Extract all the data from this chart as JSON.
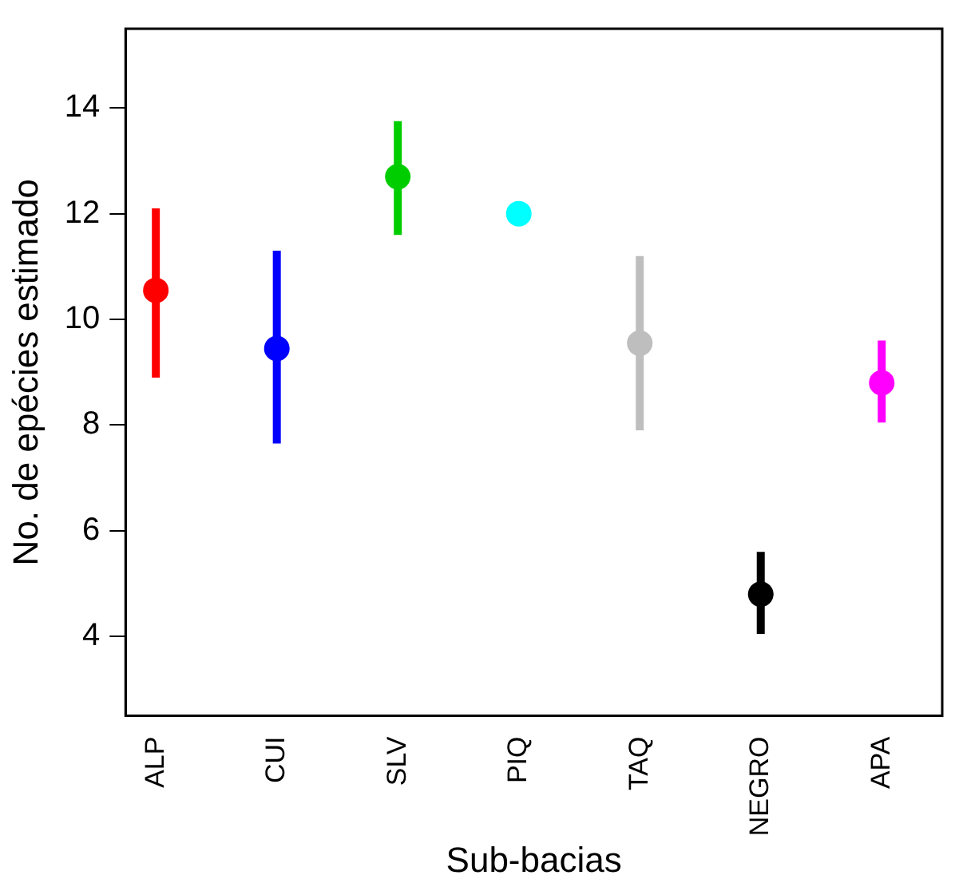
{
  "chart_data": {
    "type": "scatter",
    "xlabel": "Sub-bacias",
    "ylabel": "No. de epécies estimado",
    "categories": [
      "ALP",
      "CUI",
      "SLV",
      "PIQ",
      "TAQ",
      "NEGRO",
      "APA"
    ],
    "values": [
      10.55,
      9.45,
      12.7,
      12.0,
      9.55,
      4.8,
      8.8
    ],
    "errors": [
      [
        8.9,
        12.1
      ],
      [
        7.65,
        11.3
      ],
      [
        11.6,
        13.75
      ],
      null,
      [
        7.9,
        11.2
      ],
      [
        4.05,
        5.6
      ],
      [
        8.05,
        9.6
      ]
    ],
    "colors": [
      "#ff0000",
      "#0000ff",
      "#00cd00",
      "#00ffff",
      "#bebebe",
      "#000000",
      "#ff00ff"
    ],
    "ylim": [
      2.5,
      15.5
    ],
    "yticks": [
      4,
      6,
      8,
      10,
      12,
      14
    ],
    "grid": false,
    "legend": false,
    "marker": "circle"
  }
}
